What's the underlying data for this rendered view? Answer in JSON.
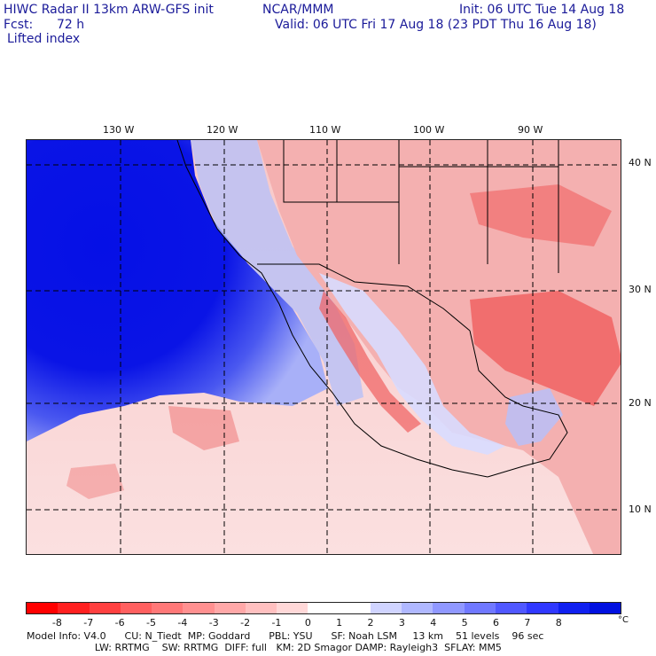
{
  "header": {
    "title": "HIWC Radar II 13km ARW-GFS init",
    "org": "NCAR/MMM",
    "init": "Init: 06 UTC Tue 14 Aug 18",
    "fcst_label": "Fcst:",
    "fcst_value": "72 h",
    "valid": "Valid: 06 UTC Fri 17 Aug 18 (23 PDT Thu 16 Aug 18)",
    "field": "Lifted index"
  },
  "map": {
    "lon_labels": [
      "130 W",
      "120 W",
      "110 W",
      "100 W",
      "90 W"
    ],
    "lat_labels": [
      "40 N",
      "30 N",
      "20 N",
      "10 N"
    ],
    "ocean_color": "#0a14e6",
    "land_color": "#f2a8a8"
  },
  "colorbar": {
    "ticks": [
      "-8",
      "-7",
      "-6",
      "-5",
      "-4",
      "-3",
      "-2",
      "-1",
      "0",
      "1",
      "2",
      "3",
      "4",
      "5",
      "6",
      "7",
      "8"
    ],
    "unit": "°C",
    "colors": [
      "#ff0000",
      "#ff2020",
      "#ff4040",
      "#ff6060",
      "#ff7878",
      "#ff9090",
      "#ffa8a8",
      "#ffc0c0",
      "#ffd8d8",
      "#ffffff",
      "#ffffff",
      "#d0d4ff",
      "#b0b8ff",
      "#9098ff",
      "#7078ff",
      "#5058ff",
      "#3038ff",
      "#1020f0",
      "#0010e0"
    ]
  },
  "footer": {
    "line1": "Model Info: V4.0      CU: N_Tiedt  MP: Goddard      PBL: YSU      SF: Noah LSM     13 km    51 levels    96 sec",
    "line2": "                      LW: RRTMG    SW: RRTMG  DIFF: full   KM: 2D Smagor DAMP: Rayleigh3  SFLAY: MM5"
  }
}
